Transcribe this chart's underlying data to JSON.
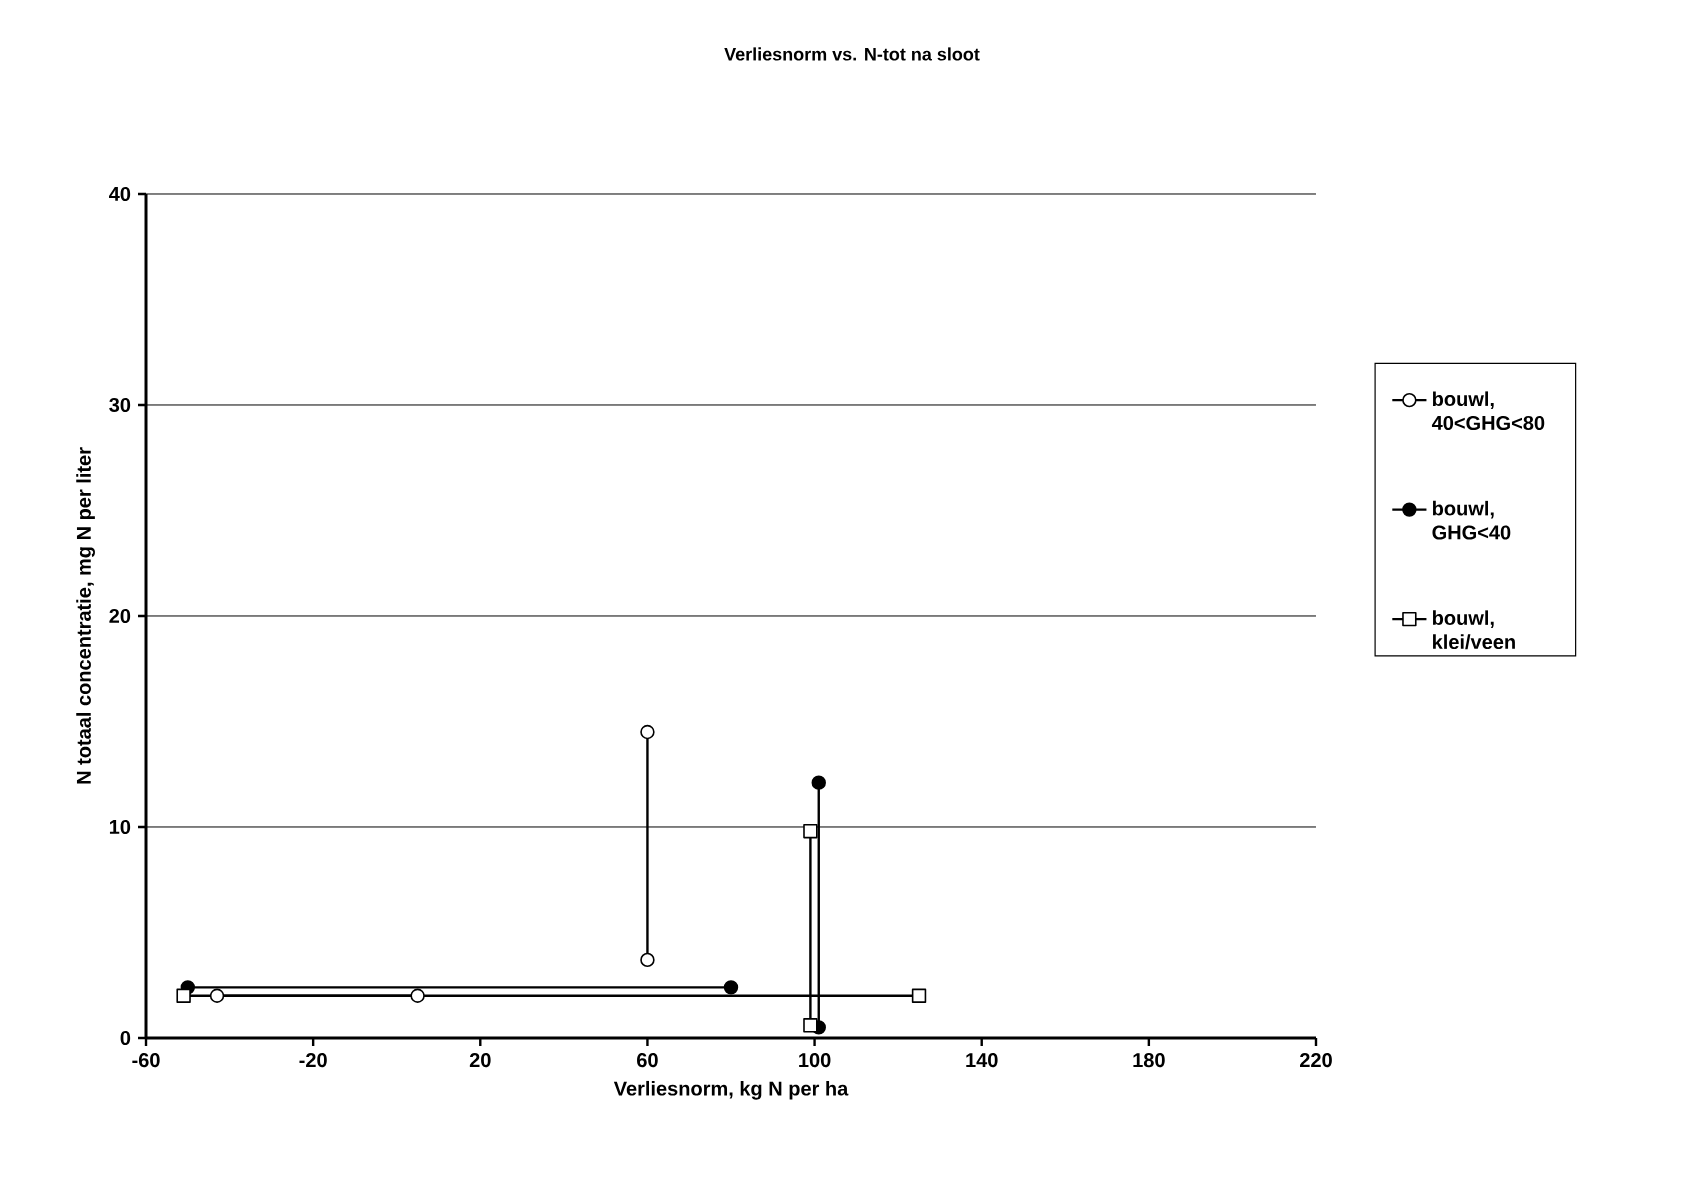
{
  "chart_data": {
    "type": "line",
    "title": "Verliesnorm vs. N-tot na sloot",
    "xlabel": "Verliesnorm, kg N per ha",
    "ylabel": "N totaal concentratie, mg N per liter",
    "xlim": [
      -60,
      220
    ],
    "xticks": [
      -60,
      -20,
      20,
      60,
      100,
      140,
      180,
      220
    ],
    "ylim": [
      0,
      40
    ],
    "yticks": [
      0,
      10,
      20,
      30,
      40
    ],
    "grid": "y",
    "legend": "right",
    "series": [
      {
        "name": "bouwl, 40<GHG<80",
        "color": "#ffffff",
        "marker": "circle",
        "x": [
          -43,
          5
        ],
        "values": [
          2,
          2
        ]
      },
      {
        "color": "#ffffff",
        "marker": "circle",
        "x": [
          60,
          60
        ],
        "values": [
          14.5,
          3.7
        ]
      },
      {
        "name": "bouwl, GHG<40",
        "color": "#000000",
        "marker": "circle",
        "x": [
          -50,
          80
        ],
        "values": [
          2.4,
          2.4
        ]
      },
      {
        "color": "#000000",
        "marker": "circle",
        "x": [
          101,
          101
        ],
        "values": [
          12.1,
          0.5
        ]
      },
      {
        "name": "bouwl, klei/veen",
        "color": "#ffffff",
        "marker": "square",
        "x": [
          -51,
          125
        ],
        "values": [
          2,
          2
        ]
      },
      {
        "color": "#ffffff",
        "marker": "square",
        "x": [
          99,
          99
        ],
        "values": [
          9.8,
          0.6
        ]
      }
    ]
  }
}
